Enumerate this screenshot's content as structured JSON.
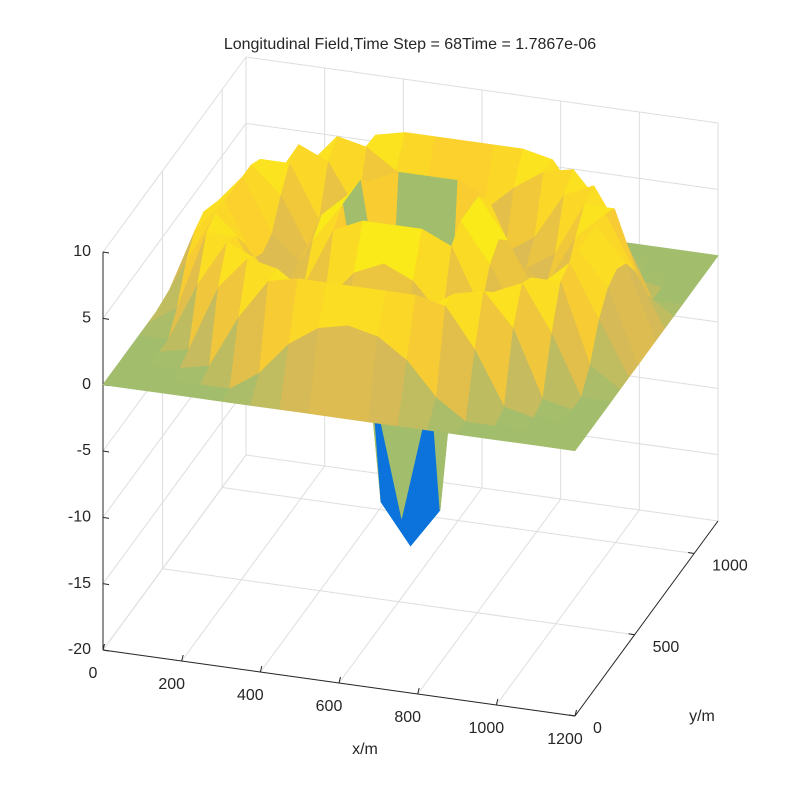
{
  "chart_data": {
    "type": "surface",
    "title": "Longitudinal Field,Time Step = 68Time = 1.7867e-06",
    "xlabel": "x/m",
    "ylabel": "y/m",
    "x": [
      0,
      75,
      150,
      225,
      300,
      375,
      450,
      525,
      600,
      675,
      750,
      825,
      900,
      975,
      1050,
      1125,
      1200
    ],
    "y": [
      0,
      75,
      150,
      225,
      300,
      375,
      450,
      525,
      600,
      675,
      750,
      825,
      900,
      975,
      1050,
      1125,
      1200
    ],
    "z": [
      [
        0,
        0,
        0,
        0,
        0,
        0,
        0,
        0,
        0,
        0,
        0,
        0,
        0,
        0,
        0,
        0,
        0
      ],
      [
        0,
        0,
        0,
        0,
        0,
        1.5,
        4,
        5.5,
        6,
        5.5,
        4,
        1.5,
        0,
        0,
        0,
        0,
        0
      ],
      [
        0,
        0,
        0,
        0.5,
        4.5,
        7.5,
        8,
        8,
        8,
        8,
        8,
        7.5,
        4.5,
        0.5,
        0,
        0,
        0
      ],
      [
        0,
        0,
        0.5,
        5.5,
        8,
        7.5,
        6,
        4,
        3.5,
        4,
        6,
        7.5,
        8,
        5.5,
        0.5,
        0,
        0
      ],
      [
        0,
        0,
        4.5,
        8,
        7,
        3.5,
        2,
        2,
        2,
        2,
        2,
        3.5,
        7,
        8,
        4.5,
        0,
        0
      ],
      [
        0,
        1.5,
        7.5,
        7.5,
        3.5,
        2,
        3.5,
        6,
        7,
        6,
        3.5,
        2,
        3.5,
        7.5,
        7.5,
        1.5,
        0
      ],
      [
        0,
        4,
        8,
        6,
        2,
        3.5,
        8,
        9,
        9,
        9,
        8,
        3.5,
        2,
        6,
        8,
        4,
        0
      ],
      [
        0,
        5.5,
        8,
        4,
        2,
        6,
        9,
        -4,
        -14,
        -4,
        9,
        6,
        2,
        4,
        8,
        5.5,
        0
      ],
      [
        0,
        6,
        8,
        3.5,
        2,
        7,
        9,
        -14,
        -17,
        -14,
        9,
        7,
        2,
        3.5,
        8,
        6,
        0
      ],
      [
        0,
        5.5,
        8,
        4,
        2,
        6,
        9,
        -4,
        -14,
        -4,
        9,
        6,
        2,
        4,
        8,
        5.5,
        0
      ],
      [
        0,
        4,
        8,
        6,
        2,
        3.5,
        8,
        9,
        9,
        9,
        8,
        3.5,
        2,
        6,
        8,
        4,
        0
      ],
      [
        0,
        1.5,
        7.5,
        7.5,
        3.5,
        2,
        3.5,
        6,
        7,
        6,
        3.5,
        2,
        3.5,
        7.5,
        7.5,
        1.5,
        0
      ],
      [
        0,
        0,
        4.5,
        8,
        7,
        3.5,
        2,
        2,
        2,
        2,
        2,
        3.5,
        7,
        8,
        4.5,
        0,
        0
      ],
      [
        0,
        0,
        0.5,
        5.5,
        8,
        7.5,
        6,
        4,
        3.5,
        4,
        6,
        7.5,
        8,
        5.5,
        0.5,
        0,
        0
      ],
      [
        0,
        0,
        0,
        0.5,
        4.5,
        7.5,
        8,
        8,
        8,
        8,
        8,
        7.5,
        4.5,
        0.5,
        0,
        0,
        0
      ],
      [
        0,
        0,
        0,
        0,
        0,
        1.5,
        4,
        5.5,
        6,
        5.5,
        4,
        1.5,
        0,
        0,
        0,
        0,
        0
      ],
      [
        0,
        0,
        0,
        0,
        0,
        0,
        0,
        0,
        0,
        0,
        0,
        0,
        0,
        0,
        0,
        0,
        0
      ]
    ],
    "xlim": [
      0,
      1200
    ],
    "ylim": [
      0,
      1200
    ],
    "zlim": [
      -20,
      10
    ],
    "xticks": [
      0,
      200,
      400,
      600,
      800,
      1000,
      1200
    ],
    "yticks": [
      0,
      500,
      1000
    ],
    "zticks": [
      -20,
      -15,
      -10,
      -5,
      0,
      5,
      10
    ],
    "grid": true,
    "colormap": [
      "#352a87",
      "#0363e1",
      "#1485d4",
      "#06a7c6",
      "#38b99e",
      "#92bf73",
      "#d9ba56",
      "#fcce2e",
      "#f9fb0e"
    ]
  }
}
